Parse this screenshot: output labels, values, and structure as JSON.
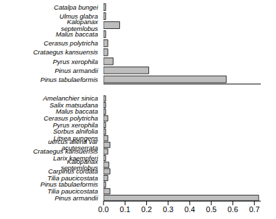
{
  "chart_data": [
    {
      "type": "bar",
      "orientation": "horizontal",
      "color": "#bebebe",
      "tick_labels": "y",
      "categories": [
        "Catalpa bungei",
        "Ulmus glabra",
        "Kalopanax septemlobus",
        "Malus baccata",
        "Cerasus polytricha",
        "Crataegus kansuensis",
        "Pyrus xerophila",
        "Pinus armandii",
        "Pinus tabulaeformis"
      ],
      "values": [
        0.01,
        0.01,
        0.075,
        0.01,
        0.02,
        0.02,
        0.045,
        0.21,
        0.57
      ],
      "xlim": [
        0,
        0.73
      ]
    },
    {
      "type": "bar",
      "orientation": "horizontal",
      "color": "#bebebe",
      "categories": [
        "Amelanchier sinica",
        "Salix matsudana",
        "Malus baccata",
        "Cerasus polytricha",
        "Pyrus xerophila",
        "Sorbus alnifolia",
        "Litsea pungens",
        "uercus aliena var acuteserrata",
        "Crataegus kansuensis",
        "Larix kaempferi",
        "Kalopanax septemlobus",
        "Carpinus cordata",
        "Tilia paucicostata",
        "Pinus tabulaeformis",
        "Tilia paucicostata",
        "Pinus armandii"
      ],
      "values": [
        0.01,
        0.01,
        0.01,
        0.02,
        0.01,
        0.01,
        0.02,
        0.03,
        0.02,
        0.01,
        0.025,
        0.03,
        0.02,
        0.01,
        0.03,
        0.72
      ],
      "xlim": [
        0,
        0.73
      ],
      "xticks": [
        {
          "value": 0,
          "label": "0.0"
        },
        0.1,
        0.2,
        0.3,
        0.4,
        0.5,
        0.6,
        0.7
      ]
    }
  ]
}
